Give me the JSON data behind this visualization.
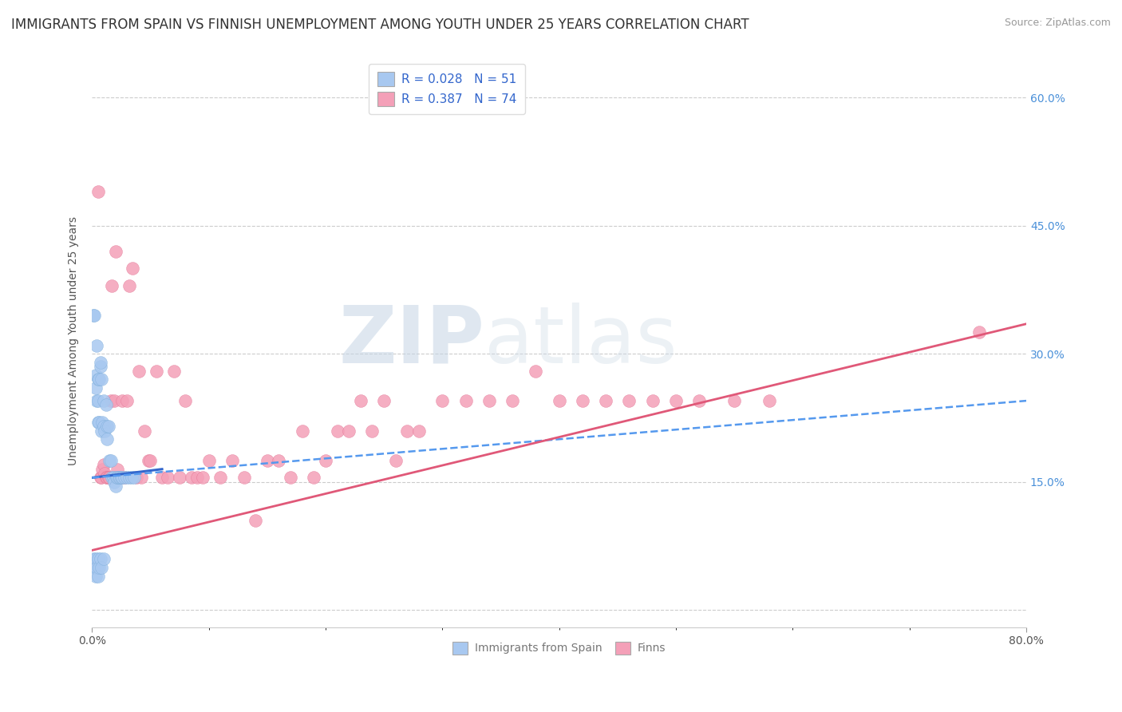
{
  "title": "IMMIGRANTS FROM SPAIN VS FINNISH UNEMPLOYMENT AMONG YOUTH UNDER 25 YEARS CORRELATION CHART",
  "source": "Source: ZipAtlas.com",
  "ylabel": "Unemployment Among Youth under 25 years",
  "xlim": [
    0.0,
    0.8
  ],
  "ylim": [
    -0.02,
    0.65
  ],
  "grid_color": "#cccccc",
  "background_color": "#ffffff",
  "blue_scatter": {
    "x": [
      0.001,
      0.002,
      0.003,
      0.003,
      0.004,
      0.004,
      0.005,
      0.005,
      0.005,
      0.006,
      0.006,
      0.007,
      0.007,
      0.008,
      0.008,
      0.009,
      0.01,
      0.01,
      0.011,
      0.012,
      0.013,
      0.013,
      0.014,
      0.015,
      0.016,
      0.017,
      0.018,
      0.019,
      0.02,
      0.021,
      0.022,
      0.023,
      0.024,
      0.025,
      0.026,
      0.028,
      0.03,
      0.032,
      0.034,
      0.036,
      0.001,
      0.002,
      0.003,
      0.003,
      0.004,
      0.005,
      0.005,
      0.006,
      0.007,
      0.008,
      0.01
    ],
    "y": [
      0.345,
      0.345,
      0.275,
      0.26,
      0.245,
      0.31,
      0.245,
      0.27,
      0.22,
      0.27,
      0.22,
      0.285,
      0.29,
      0.27,
      0.21,
      0.22,
      0.245,
      0.215,
      0.21,
      0.24,
      0.215,
      0.2,
      0.215,
      0.175,
      0.175,
      0.155,
      0.155,
      0.15,
      0.145,
      0.155,
      0.155,
      0.155,
      0.155,
      0.155,
      0.155,
      0.155,
      0.155,
      0.155,
      0.155,
      0.155,
      0.06,
      0.05,
      0.06,
      0.04,
      0.05,
      0.06,
      0.04,
      0.05,
      0.06,
      0.05,
      0.06
    ],
    "color": "#a8c8f0",
    "edge_color": "#7aacd8",
    "R": 0.028,
    "N": 51
  },
  "pink_scatter": {
    "x": [
      0.005,
      0.007,
      0.008,
      0.009,
      0.01,
      0.011,
      0.012,
      0.013,
      0.014,
      0.015,
      0.016,
      0.017,
      0.018,
      0.019,
      0.02,
      0.021,
      0.022,
      0.023,
      0.024,
      0.025,
      0.026,
      0.028,
      0.03,
      0.032,
      0.035,
      0.038,
      0.04,
      0.042,
      0.045,
      0.048,
      0.05,
      0.055,
      0.06,
      0.065,
      0.07,
      0.075,
      0.08,
      0.085,
      0.09,
      0.095,
      0.1,
      0.11,
      0.12,
      0.13,
      0.14,
      0.15,
      0.16,
      0.17,
      0.18,
      0.19,
      0.2,
      0.21,
      0.22,
      0.23,
      0.24,
      0.25,
      0.26,
      0.27,
      0.28,
      0.3,
      0.32,
      0.34,
      0.36,
      0.38,
      0.4,
      0.42,
      0.44,
      0.46,
      0.48,
      0.5,
      0.52,
      0.55,
      0.58,
      0.76
    ],
    "y": [
      0.49,
      0.155,
      0.155,
      0.165,
      0.17,
      0.16,
      0.155,
      0.155,
      0.155,
      0.155,
      0.245,
      0.38,
      0.155,
      0.245,
      0.42,
      0.155,
      0.165,
      0.155,
      0.155,
      0.155,
      0.245,
      0.155,
      0.245,
      0.38,
      0.4,
      0.155,
      0.28,
      0.155,
      0.21,
      0.175,
      0.175,
      0.28,
      0.155,
      0.155,
      0.28,
      0.155,
      0.245,
      0.155,
      0.155,
      0.155,
      0.175,
      0.155,
      0.175,
      0.155,
      0.105,
      0.175,
      0.175,
      0.155,
      0.21,
      0.155,
      0.175,
      0.21,
      0.21,
      0.245,
      0.21,
      0.245,
      0.175,
      0.21,
      0.21,
      0.245,
      0.245,
      0.245,
      0.245,
      0.28,
      0.245,
      0.245,
      0.245,
      0.245,
      0.245,
      0.245,
      0.245,
      0.245,
      0.245,
      0.325
    ],
    "color": "#f4a0b8",
    "edge_color": "#e07090",
    "R": 0.387,
    "N": 74
  },
  "blue_line": {
    "x0": 0.0,
    "y0": 0.155,
    "x1": 0.06,
    "y1": 0.165,
    "color": "#3366cc",
    "style": "-",
    "linewidth": 2.2
  },
  "dashed_line": {
    "x0": 0.0,
    "y0": 0.155,
    "x1": 0.8,
    "y1": 0.245,
    "color": "#5599ee",
    "style": "--",
    "linewidth": 1.8
  },
  "pink_line": {
    "x0": 0.0,
    "y0": 0.07,
    "x1": 0.8,
    "y1": 0.335,
    "color": "#e05878",
    "style": "-",
    "linewidth": 2.0
  },
  "watermark_zip": "ZIP",
  "watermark_atlas": "atlas",
  "legend_r_color": "#3366cc",
  "title_fontsize": 12,
  "axis_fontsize": 10,
  "source_fontsize": 9,
  "legend_fontsize": 11
}
